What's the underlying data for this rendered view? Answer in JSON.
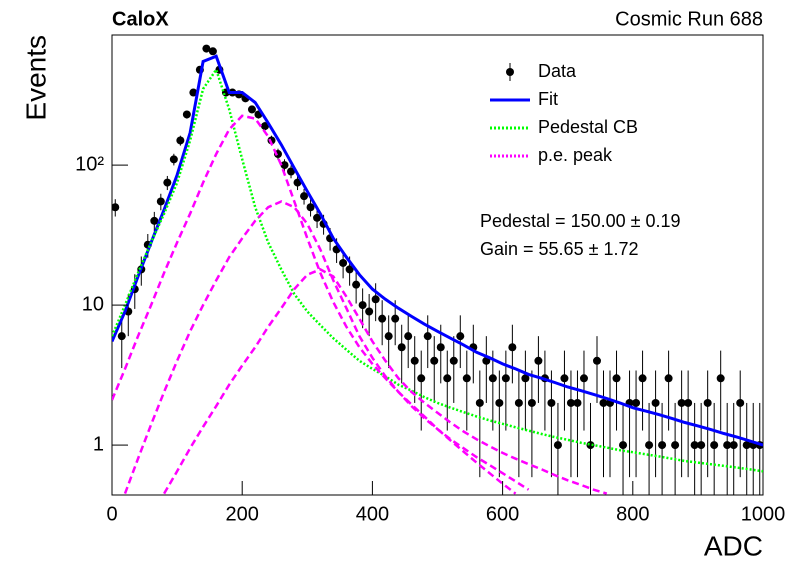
{
  "chart_data": {
    "type": "scatter",
    "title": "CaloX",
    "subtitle": "Cosmic Run 688",
    "xlabel": "ADC",
    "ylabel": "Events",
    "xlim": [
      0,
      1000
    ],
    "ylim": [
      0.44,
      850
    ],
    "log_y": true,
    "xticks": [
      0,
      200,
      400,
      600,
      800,
      1000
    ],
    "yticks": [
      1,
      10,
      {
        "value": 100,
        "label": "10²"
      }
    ],
    "legend": "upper right",
    "annotations": [
      "Pedestal = 150.00 ± 0.19",
      "Gain = 55.65 ± 1.72"
    ],
    "x": [
      0,
      20,
      40,
      60,
      80,
      100,
      120,
      140,
      160,
      180,
      200,
      220,
      240,
      260,
      280,
      300,
      320,
      340,
      360,
      380,
      400,
      420,
      440,
      460,
      480,
      500,
      520,
      540,
      560,
      580,
      600,
      620,
      640,
      660,
      680,
      700,
      720,
      740,
      760,
      780,
      800,
      820,
      840,
      860,
      880,
      900,
      920,
      940,
      960,
      980,
      1000
    ],
    "series": [
      {
        "name": "Data",
        "color": "#000000",
        "style": "points",
        "x": [
          5,
          15,
          25,
          35,
          45,
          55,
          65,
          75,
          85,
          95,
          105,
          115,
          125,
          135,
          145,
          155,
          165,
          175,
          185,
          195,
          205,
          215,
          225,
          235,
          245,
          255,
          265,
          275,
          285,
          295,
          305,
          315,
          325,
          335,
          345,
          355,
          365,
          375,
          385,
          395,
          405,
          415,
          425,
          435,
          445,
          455,
          465,
          475,
          485,
          495,
          505,
          515,
          525,
          535,
          545,
          555,
          565,
          575,
          585,
          595,
          605,
          615,
          625,
          635,
          645,
          655,
          665,
          675,
          685,
          695,
          705,
          715,
          725,
          735,
          745,
          755,
          765,
          775,
          785,
          795,
          805,
          815,
          825,
          835,
          845,
          855,
          865,
          875,
          885,
          895,
          905,
          915,
          925,
          935,
          945,
          955,
          965,
          975,
          985,
          995
        ],
        "values": [
          50,
          6,
          9,
          13,
          18,
          27,
          40,
          55,
          75,
          110,
          150,
          230,
          330,
          480,
          680,
          650,
          480,
          330,
          330,
          320,
          300,
          250,
          230,
          190,
          150,
          120,
          100,
          90,
          75,
          60,
          50,
          42,
          38,
          30,
          25,
          20,
          18,
          14,
          10,
          9,
          11,
          8,
          6,
          8,
          5,
          6,
          4,
          3,
          6,
          4,
          5,
          3,
          4,
          6,
          3,
          5,
          2,
          4,
          3,
          2,
          3,
          5,
          2,
          3,
          2,
          4,
          3,
          2,
          1,
          3,
          2,
          2,
          3,
          1,
          4,
          2,
          2,
          3,
          1,
          2,
          2,
          3,
          1,
          2,
          1,
          3,
          1,
          2,
          2,
          1,
          1,
          2,
          1,
          3,
          1,
          1,
          2,
          1,
          1,
          1
        ],
        "errors": [
          7.07,
          2.45,
          3,
          3.61,
          4.24,
          5.2,
          6.32,
          7.42,
          8.66,
          10.49,
          12.25,
          15.17,
          18.17,
          21.91,
          26.08,
          25.5,
          21.91,
          18.17,
          18.17,
          17.89,
          17.32,
          15.81,
          15.17,
          13.78,
          12.25,
          10.95,
          10,
          9.49,
          8.66,
          7.75,
          7.07,
          6.48,
          6.16,
          5.48,
          5,
          4.47,
          4.24,
          3.74,
          3.16,
          3,
          3.32,
          2.83,
          2.45,
          2.83,
          2.24,
          2.45,
          2,
          1.73,
          2.45,
          2,
          2.24,
          1.73,
          2,
          2.45,
          1.73,
          2.24,
          1.41,
          2,
          1.73,
          1.41,
          1.73,
          2.24,
          1.41,
          1.73,
          1.41,
          2,
          1.73,
          1.41,
          1,
          1.73,
          1.41,
          1.41,
          1.73,
          1,
          2,
          1.41,
          1.41,
          1.73,
          1,
          1.41,
          1.41,
          1.73,
          1,
          1.41,
          1,
          1.73,
          1,
          1.41,
          1.41,
          1,
          1,
          1.41,
          1,
          1.73,
          1,
          1,
          1.41,
          1,
          1,
          1
        ]
      },
      {
        "name": "Fit",
        "color": "#0000ff",
        "style": "solid",
        "curves": [
          [
            5.5,
            9,
            16,
            28,
            48,
            85,
            170,
            550,
            600,
            330,
            330,
            280,
            200,
            140,
            95,
            65,
            45,
            30,
            22,
            16.5,
            13,
            11,
            9.5,
            8.3,
            7.3,
            6.5,
            5.8,
            5.2,
            4.6,
            4.2,
            3.8,
            3.5,
            3.2,
            3.0,
            2.8,
            2.6,
            2.45,
            2.3,
            2.15,
            2.0,
            1.85,
            1.75,
            1.65,
            1.55,
            1.45,
            1.37,
            1.29,
            1.21,
            1.14,
            1.07,
            1.0
          ]
        ]
      },
      {
        "name": "Pedestal CB",
        "color": "#00ff00",
        "style": "dotted",
        "curves": [
          [
            6,
            10,
            17,
            28,
            45,
            75,
            150,
            350,
            480,
            250,
            110,
            50,
            28,
            18,
            12,
            9,
            7.2,
            5.8,
            4.8,
            4.0,
            3.5,
            3.1,
            2.7,
            2.45,
            2.2,
            2.0,
            1.85,
            1.72,
            1.6,
            1.5,
            1.42,
            1.34,
            1.27,
            1.2,
            1.14,
            1.09,
            1.04,
            1.0,
            0.96,
            0.92,
            0.89,
            0.86,
            0.83,
            0.8,
            0.77,
            0.75,
            0.73,
            0.71,
            0.69,
            0.67,
            0.65
          ]
        ]
      },
      {
        "name": "p.e. peak",
        "color": "#ff00ff",
        "style": "dashed",
        "curves": [
          [
            2.1,
            3.5,
            6,
            10,
            17,
            28,
            45,
            75,
            120,
            180,
            225,
            215,
            160,
            100,
            55,
            30,
            17,
            10.5,
            7,
            5,
            3.8,
            3.0,
            2.4,
            1.95,
            1.6,
            1.3,
            1.08,
            0.9,
            0.75,
            0.63,
            0.53,
            0.45,
            null,
            null,
            null,
            null,
            null,
            null,
            null,
            null,
            null,
            null,
            null,
            null,
            null,
            null,
            null,
            null,
            null,
            null,
            null
          ],
          [
            null,
            0.45,
            0.8,
            1.4,
            2.4,
            4,
            6.5,
            10,
            15,
            22,
            30,
            40,
            50,
            55,
            50,
            38,
            25,
            15,
            9.5,
            6,
            4.2,
            3.1,
            2.4,
            1.9,
            1.55,
            1.3,
            1.1,
            0.95,
            0.82,
            0.72,
            0.63,
            0.55,
            0.48,
            null,
            null,
            null,
            null,
            null,
            null,
            null,
            null,
            null,
            null,
            null,
            null,
            null,
            null,
            null,
            null,
            null,
            null
          ],
          [
            null,
            null,
            null,
            null,
            0.45,
            0.65,
            0.95,
            1.35,
            1.9,
            2.7,
            3.7,
            5,
            7,
            9.5,
            13,
            16.5,
            18,
            16,
            11.5,
            8,
            5.5,
            4,
            3,
            2.4,
            2,
            1.7,
            1.45,
            1.25,
            1.1,
            0.98,
            0.88,
            0.8,
            0.73,
            0.67,
            0.61,
            0.56,
            0.52,
            0.48,
            0.45,
            null,
            null,
            null,
            null,
            null,
            null,
            null,
            null,
            null,
            null,
            null,
            null
          ]
        ]
      }
    ]
  }
}
